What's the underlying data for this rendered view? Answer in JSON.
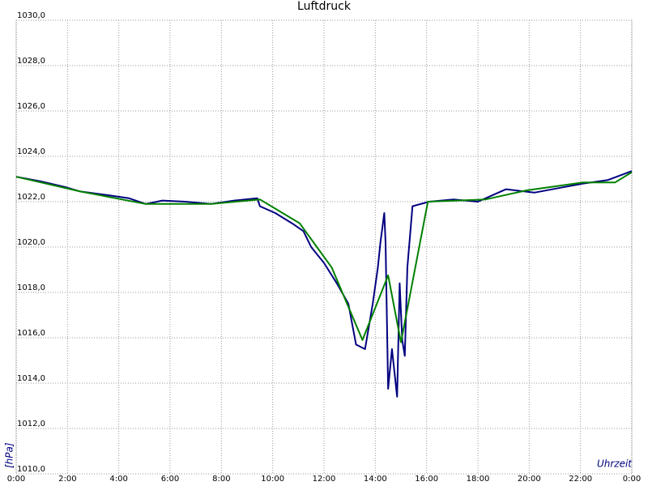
{
  "chart_data": {
    "type": "line",
    "title": "Luftdruck",
    "y_label": "[hPa]",
    "x_label": "Uhrzeit",
    "xlim": [
      0,
      24
    ],
    "xticks": [
      {
        "value": 0,
        "label": "0:00"
      },
      {
        "value": 2,
        "label": "2:00"
      },
      {
        "value": 4,
        "label": "4:00"
      },
      {
        "value": 6,
        "label": "6:00"
      },
      {
        "value": 8,
        "label": "8:00"
      },
      {
        "value": 10,
        "label": "10:00"
      },
      {
        "value": 12,
        "label": "12:00"
      },
      {
        "value": 14,
        "label": "14:00"
      },
      {
        "value": 16,
        "label": "16:00"
      },
      {
        "value": 18,
        "label": "18:00"
      },
      {
        "value": 20,
        "label": "20:00"
      },
      {
        "value": 22,
        "label": "22:00"
      },
      {
        "value": 24,
        "label": "0:00"
      }
    ],
    "ylim": [
      1010,
      1030
    ],
    "yticks": [
      {
        "value": 1010,
        "label": "1010,0"
      },
      {
        "value": 1012,
        "label": "1012,0"
      },
      {
        "value": 1014,
        "label": "1014,0"
      },
      {
        "value": 1016,
        "label": "1016,0"
      },
      {
        "value": 1018,
        "label": "1018,0"
      },
      {
        "value": 1020,
        "label": "1020,0"
      },
      {
        "value": 1022,
        "label": "1022,0"
      },
      {
        "value": 1024,
        "label": "1024,0"
      },
      {
        "value": 1026,
        "label": "1026,0"
      },
      {
        "value": 1028,
        "label": "1028,0"
      },
      {
        "value": 1030,
        "label": "1030,0"
      }
    ],
    "grid": true,
    "series": [
      {
        "color": "#000080",
        "x": [
          0,
          0.95,
          1.9,
          2.5,
          3.5,
          4.4,
          5.05,
          5.7,
          6.6,
          7.6,
          8.5,
          9.4,
          9.5,
          10.1,
          10.75,
          11.2,
          11.5,
          12.0,
          12.5,
          12.95,
          13.25,
          13.6,
          13.9,
          14.1,
          14.2,
          14.35,
          14.4,
          14.5,
          14.65,
          14.85,
          14.95,
          15.05,
          15.15,
          15.25,
          15.45,
          16.1,
          17.05,
          18.0,
          18.6,
          19.1,
          20.2,
          21.15,
          22.1,
          23.05,
          24.0
        ],
        "values": [
          1023.1,
          1022.9,
          1022.65,
          1022.45,
          1022.3,
          1022.15,
          1021.9,
          1022.05,
          1022.0,
          1021.9,
          1022.05,
          1022.15,
          1021.8,
          1021.5,
          1021.05,
          1020.7,
          1020.0,
          1019.3,
          1018.4,
          1017.5,
          1015.7,
          1015.5,
          1017.5,
          1019.1,
          1020.2,
          1021.5,
          1020.2,
          1013.75,
          1015.5,
          1013.4,
          1018.4,
          1015.9,
          1015.2,
          1019.1,
          1021.8,
          1022.0,
          1022.1,
          1022.0,
          1022.3,
          1022.55,
          1022.4,
          1022.6,
          1022.8,
          1022.95,
          1023.35
        ]
      },
      {
        "color": "#008000",
        "x": [
          0,
          2.5,
          5.05,
          7.6,
          9.5,
          11.05,
          12.3,
          13.5,
          14.5,
          15.0,
          16.05,
          18.3,
          19.9,
          22.1,
          23.35,
          24.0
        ],
        "values": [
          1023.1,
          1022.45,
          1021.9,
          1021.9,
          1022.1,
          1021.05,
          1019.1,
          1015.9,
          1018.75,
          1015.8,
          1022.0,
          1022.1,
          1022.5,
          1022.85,
          1022.85,
          1023.3
        ]
      }
    ]
  }
}
